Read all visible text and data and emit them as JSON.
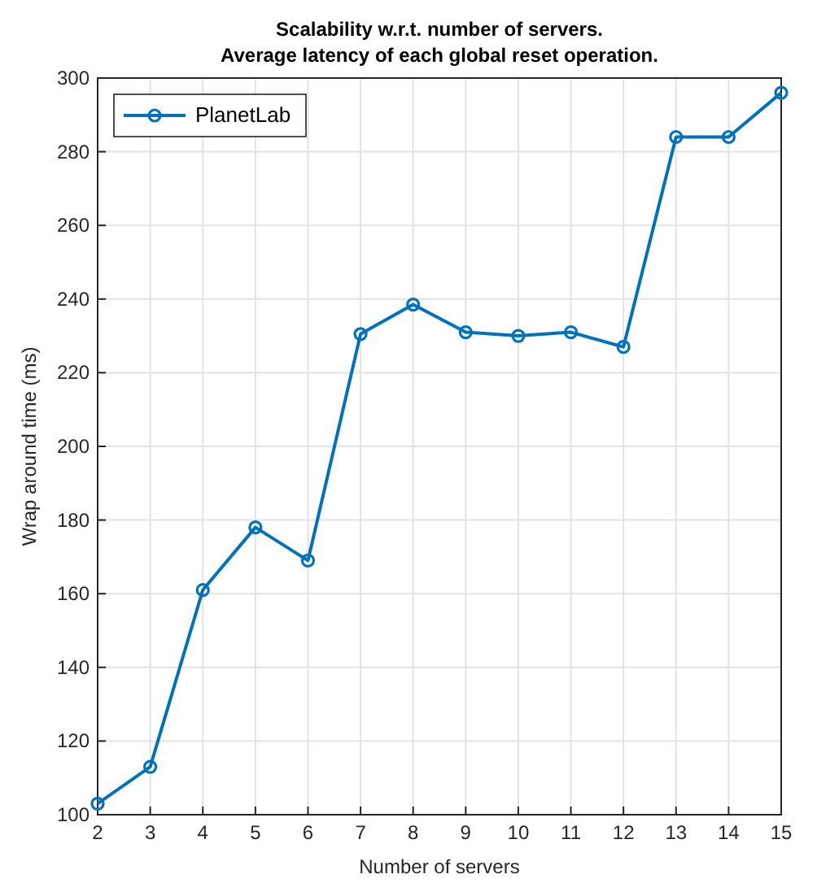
{
  "chart_data": {
    "type": "line",
    "title": "Scalability w.r.t. number of servers.\nAverage latency of each global reset operation.",
    "xlabel": "Number of servers",
    "ylabel": "Wrap around time (ms)",
    "x": [
      2,
      3,
      4,
      5,
      6,
      7,
      8,
      9,
      10,
      11,
      12,
      13,
      14,
      15
    ],
    "series": [
      {
        "name": "PlanetLab",
        "color": "#0072bd",
        "values": [
          103,
          113,
          161,
          178,
          169,
          230.5,
          238.5,
          231,
          230,
          231,
          227,
          284,
          284,
          296
        ]
      }
    ],
    "xlim": [
      2,
      15
    ],
    "xticks": [
      2,
      3,
      4,
      5,
      6,
      7,
      8,
      9,
      10,
      11,
      12,
      13,
      14,
      15
    ],
    "ylim": [
      100,
      300
    ],
    "yticks": [
      100,
      120,
      140,
      160,
      180,
      200,
      220,
      240,
      260,
      280,
      300
    ],
    "grid": true,
    "legend": "top left",
    "marker": "circle",
    "line_style": "solid"
  }
}
